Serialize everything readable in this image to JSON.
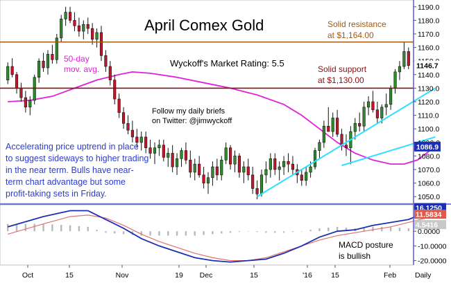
{
  "chart_data": [
    {
      "type": "candlestick",
      "title": "April Comex Gold",
      "rating": "Wyckoff's Market Rating: 5.5",
      "x_ticks": [
        "Oct",
        "15",
        "Nov",
        "19",
        "Dec",
        "15",
        "'16",
        "15",
        "Feb",
        "Daily"
      ],
      "y_ticks": [
        "1050.0",
        "1060.0",
        "1070.0",
        "1080.0",
        "1090.0",
        "1100.0",
        "1110.0",
        "1120.0",
        "1130.0",
        "1140.0",
        "1150.0",
        "1160.0",
        "1170.0",
        "1180.0",
        "1190.0"
      ],
      "ylim": [
        1045,
        1195
      ],
      "last_price": "1146.7",
      "ma_value": "1086.9",
      "ma_label": [
        "50-day",
        "mov. avg."
      ],
      "resistance": {
        "value": 1164,
        "label": [
          "Solid resistance",
          "at $1,164.00"
        ]
      },
      "support": {
        "value": 1130,
        "label": [
          "Solid support",
          "at $1,130.00"
        ]
      },
      "twitter_note": [
        "Follow my daily briefs",
        "on Twitter: @jimwyckoff"
      ],
      "commentary": [
        "Accelerating price uptrend in place",
        "to suggest sideways to higher trading",
        "in the near term. Bulls have near-",
        "term chart advantage but some",
        "profit-taking sets in Friday."
      ],
      "ohlc": [
        [
          1136,
          1149,
          1133,
          1146
        ],
        [
          1146,
          1152,
          1138,
          1140
        ],
        [
          1140,
          1142,
          1126,
          1130
        ],
        [
          1130,
          1134,
          1120,
          1123
        ],
        [
          1123,
          1128,
          1112,
          1116
        ],
        [
          1116,
          1124,
          1110,
          1121
        ],
        [
          1121,
          1140,
          1118,
          1138
        ],
        [
          1138,
          1152,
          1134,
          1150
        ],
        [
          1150,
          1156,
          1142,
          1145
        ],
        [
          1145,
          1158,
          1140,
          1155
        ],
        [
          1155,
          1162,
          1148,
          1151
        ],
        [
          1151,
          1170,
          1148,
          1167
        ],
        [
          1167,
          1184,
          1164,
          1181
        ],
        [
          1181,
          1190,
          1176,
          1186
        ],
        [
          1186,
          1190,
          1178,
          1180
        ],
        [
          1180,
          1186,
          1172,
          1176
        ],
        [
          1176,
          1182,
          1168,
          1172
        ],
        [
          1172,
          1180,
          1166,
          1177
        ],
        [
          1177,
          1182,
          1170,
          1174
        ],
        [
          1174,
          1178,
          1162,
          1166
        ],
        [
          1166,
          1174,
          1160,
          1171
        ],
        [
          1171,
          1176,
          1150,
          1154
        ],
        [
          1154,
          1158,
          1142,
          1146
        ],
        [
          1146,
          1150,
          1132,
          1136
        ],
        [
          1136,
          1140,
          1118,
          1122
        ],
        [
          1122,
          1126,
          1108,
          1112
        ],
        [
          1112,
          1116,
          1100,
          1104
        ],
        [
          1104,
          1110,
          1096,
          1099
        ],
        [
          1099,
          1106,
          1090,
          1094
        ],
        [
          1094,
          1100,
          1086,
          1090
        ],
        [
          1090,
          1098,
          1084,
          1094
        ],
        [
          1094,
          1098,
          1082,
          1086
        ],
        [
          1086,
          1092,
          1078,
          1082
        ],
        [
          1082,
          1090,
          1074,
          1086
        ],
        [
          1086,
          1092,
          1080,
          1088
        ],
        [
          1088,
          1092,
          1076,
          1079
        ],
        [
          1079,
          1086,
          1072,
          1082
        ],
        [
          1082,
          1088,
          1068,
          1072
        ],
        [
          1072,
          1082,
          1066,
          1078
        ],
        [
          1078,
          1086,
          1072,
          1084
        ],
        [
          1084,
          1090,
          1074,
          1077
        ],
        [
          1077,
          1084,
          1064,
          1068
        ],
        [
          1068,
          1078,
          1062,
          1074
        ],
        [
          1074,
          1080,
          1064,
          1066
        ],
        [
          1066,
          1072,
          1056,
          1060
        ],
        [
          1060,
          1068,
          1052,
          1064
        ],
        [
          1064,
          1076,
          1058,
          1072
        ],
        [
          1072,
          1078,
          1062,
          1066
        ],
        [
          1066,
          1080,
          1062,
          1077
        ],
        [
          1077,
          1090,
          1074,
          1086
        ],
        [
          1086,
          1088,
          1070,
          1074
        ],
        [
          1074,
          1084,
          1068,
          1080
        ],
        [
          1080,
          1082,
          1064,
          1068
        ],
        [
          1068,
          1076,
          1060,
          1072
        ],
        [
          1072,
          1078,
          1062,
          1066
        ],
        [
          1066,
          1072,
          1052,
          1056
        ],
        [
          1056,
          1062,
          1048,
          1052
        ],
        [
          1052,
          1070,
          1050,
          1066
        ],
        [
          1066,
          1076,
          1060,
          1070
        ],
        [
          1070,
          1082,
          1064,
          1078
        ],
        [
          1078,
          1082,
          1066,
          1070
        ],
        [
          1070,
          1076,
          1062,
          1072
        ],
        [
          1072,
          1080,
          1066,
          1076
        ],
        [
          1076,
          1082,
          1068,
          1074
        ],
        [
          1074,
          1080,
          1066,
          1070
        ],
        [
          1070,
          1074,
          1060,
          1066
        ],
        [
          1066,
          1070,
          1058,
          1062
        ],
        [
          1062,
          1072,
          1058,
          1068
        ],
        [
          1068,
          1076,
          1064,
          1072
        ],
        [
          1072,
          1086,
          1070,
          1084
        ],
        [
          1084,
          1092,
          1078,
          1090
        ],
        [
          1090,
          1106,
          1086,
          1102
        ],
        [
          1102,
          1116,
          1098,
          1098
        ],
        [
          1098,
          1112,
          1094,
          1108
        ],
        [
          1108,
          1114,
          1094,
          1096
        ],
        [
          1096,
          1100,
          1084,
          1088
        ],
        [
          1088,
          1096,
          1080,
          1086
        ],
        [
          1086,
          1102,
          1074,
          1098
        ],
        [
          1098,
          1108,
          1092,
          1104
        ],
        [
          1104,
          1112,
          1098,
          1102
        ],
        [
          1102,
          1120,
          1098,
          1116
        ],
        [
          1116,
          1124,
          1110,
          1120
        ],
        [
          1120,
          1128,
          1112,
          1114
        ],
        [
          1114,
          1120,
          1104,
          1108
        ],
        [
          1108,
          1118,
          1104,
          1116
        ],
        [
          1116,
          1126,
          1110,
          1118
        ],
        [
          1118,
          1132,
          1114,
          1130
        ],
        [
          1130,
          1144,
          1126,
          1142
        ],
        [
          1142,
          1150,
          1136,
          1146
        ],
        [
          1146,
          1164,
          1144,
          1157
        ],
        [
          1157,
          1160,
          1144,
          1146.7
        ]
      ],
      "moving_average": [
        [
          0,
          1120
        ],
        [
          5,
          1121
        ],
        [
          10,
          1124
        ],
        [
          15,
          1130
        ],
        [
          20,
          1136
        ],
        [
          25,
          1140
        ],
        [
          28,
          1142
        ],
        [
          32,
          1141
        ],
        [
          38,
          1138
        ],
        [
          44,
          1134
        ],
        [
          50,
          1130
        ],
        [
          56,
          1125
        ],
        [
          62,
          1118
        ],
        [
          66,
          1110
        ],
        [
          70,
          1100
        ],
        [
          74,
          1090
        ],
        [
          78,
          1082
        ],
        [
          82,
          1077
        ],
        [
          86,
          1074
        ],
        [
          89,
          1074
        ],
        [
          92,
          1077
        ],
        [
          94,
          1082
        ],
        [
          96,
          1087
        ]
      ],
      "trendlines": [
        {
          "from": [
            56,
            1050
          ],
          "to": [
            96,
            1130
          ]
        },
        {
          "from": [
            75,
            1073
          ],
          "to": [
            96,
            1094
          ]
        }
      ],
      "colors": {
        "up": "#2e8b2e",
        "down": "#c8142a",
        "ma": "#e020d8",
        "resistance": "#a05a14",
        "support": "#8a1010",
        "trend": "#2ee0ff",
        "macd": "#1c2fb4",
        "signal": "#e07070",
        "commentary": "#2a3cd0"
      }
    },
    {
      "type": "line",
      "title": "",
      "y_ticks": [
        "0.0000",
        "-10.0000",
        "-20.0000"
      ],
      "ylim": [
        -23,
        18
      ],
      "macd_value": "16.1250",
      "signal_value": "11.5834",
      "hist_value": "4.5416",
      "annotation": [
        "MACD posture",
        "is bullish"
      ],
      "series": [
        {
          "role": "macd",
          "values": [
            [
              0,
              3
            ],
            [
              8,
              10
            ],
            [
              14,
              14
            ],
            [
              18,
              14
            ],
            [
              22,
              8
            ],
            [
              26,
              2
            ],
            [
              30,
              -5
            ],
            [
              34,
              -10
            ],
            [
              38,
              -14
            ],
            [
              42,
              -18
            ],
            [
              46,
              -20
            ],
            [
              50,
              -21
            ],
            [
              54,
              -20
            ],
            [
              58,
              -19
            ],
            [
              62,
              -15
            ],
            [
              66,
              -10
            ],
            [
              70,
              -4
            ],
            [
              74,
              0
            ],
            [
              78,
              1
            ],
            [
              82,
              4
            ],
            [
              86,
              6
            ],
            [
              90,
              8
            ],
            [
              94,
              13
            ],
            [
              97,
              16.1
            ]
          ]
        },
        {
          "role": "signal",
          "values": [
            [
              0,
              -2
            ],
            [
              8,
              5
            ],
            [
              14,
              10
            ],
            [
              18,
              11
            ],
            [
              22,
              9
            ],
            [
              26,
              4
            ],
            [
              30,
              -2
            ],
            [
              34,
              -7
            ],
            [
              38,
              -11
            ],
            [
              42,
              -15
            ],
            [
              46,
              -18
            ],
            [
              50,
              -20
            ],
            [
              54,
              -20
            ],
            [
              58,
              -18
            ],
            [
              62,
              -14
            ],
            [
              66,
              -10
            ],
            [
              70,
              -6
            ],
            [
              74,
              -3
            ],
            [
              78,
              -1
            ],
            [
              82,
              1
            ],
            [
              86,
              3
            ],
            [
              90,
              6
            ],
            [
              94,
              9
            ],
            [
              97,
              11.6
            ]
          ]
        }
      ]
    }
  ]
}
